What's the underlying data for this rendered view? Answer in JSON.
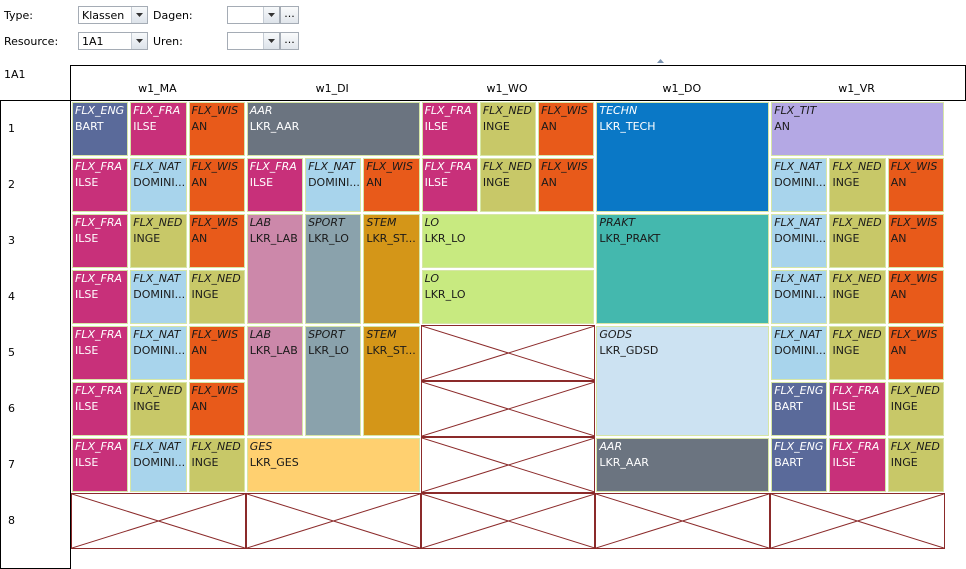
{
  "filters": {
    "type_label": "Type:",
    "type_value": "Klassen",
    "resource_label": "Resource:",
    "resource_value": "1A1",
    "dagen_label": "Dagen:",
    "uren_label": "Uren:",
    "ellipsis": "..."
  },
  "grid_title": "1A1",
  "days": [
    "w1_MA",
    "w1_DI",
    "w1_WO",
    "w1_DO",
    "w1_VR"
  ],
  "hours": [
    "1",
    "2",
    "3",
    "4",
    "5",
    "6",
    "7",
    "8"
  ],
  "colors": {
    "FLX_ENG": "#5a6a9a",
    "FLX_FRA": "#c8307a",
    "FLX_WIS": "#e85a1a",
    "FLX_NAT": "#a8d4ec",
    "FLX_NED": "#c8c868",
    "AAR": "#6b7480",
    "TECHN": "#0a78c6",
    "FLX_TIT": "#b4a8e4",
    "LAB": "#cc88aa",
    "SPORT": "#8aa2ac",
    "STEM": "#d49618",
    "LO": "#c8ea80",
    "PRAKT": "#44b8ae",
    "GODS": "#cce2f2",
    "GES": "#ffd070",
    "empty_border": "#8b2a2a"
  },
  "lessons": [
    {
      "day": 0,
      "sub": 0,
      "span": 1,
      "row": 0,
      "rows": 1,
      "subject": "FLX_ENG",
      "resource": "BART"
    },
    {
      "day": 0,
      "sub": 1,
      "span": 1,
      "row": 0,
      "rows": 1,
      "subject": "FLX_FRA",
      "resource": "ILSE"
    },
    {
      "day": 0,
      "sub": 2,
      "span": 1,
      "row": 0,
      "rows": 1,
      "subject": "FLX_WIS",
      "resource": "AN"
    },
    {
      "day": 1,
      "sub": 0,
      "span": 3,
      "row": 0,
      "rows": 1,
      "subject": "AAR",
      "resource": "LKR_AAR"
    },
    {
      "day": 2,
      "sub": 0,
      "span": 1,
      "row": 0,
      "rows": 1,
      "subject": "FLX_FRA",
      "resource": "ILSE"
    },
    {
      "day": 2,
      "sub": 1,
      "span": 1,
      "row": 0,
      "rows": 1,
      "subject": "FLX_NED",
      "resource": "INGE"
    },
    {
      "day": 2,
      "sub": 2,
      "span": 1,
      "row": 0,
      "rows": 1,
      "subject": "FLX_WIS",
      "resource": "AN"
    },
    {
      "day": 3,
      "sub": 0,
      "span": 3,
      "row": 0,
      "rows": 2,
      "subject": "TECHN",
      "resource": "LKR_TECH"
    },
    {
      "day": 4,
      "sub": 0,
      "span": 3,
      "row": 0,
      "rows": 1,
      "subject": "FLX_TIT",
      "resource": "AN"
    },
    {
      "day": 0,
      "sub": 0,
      "span": 1,
      "row": 1,
      "rows": 1,
      "subject": "FLX_FRA",
      "resource": "ILSE"
    },
    {
      "day": 0,
      "sub": 1,
      "span": 1,
      "row": 1,
      "rows": 1,
      "subject": "FLX_NAT",
      "resource": "DOMINI..."
    },
    {
      "day": 0,
      "sub": 2,
      "span": 1,
      "row": 1,
      "rows": 1,
      "subject": "FLX_WIS",
      "resource": "AN"
    },
    {
      "day": 1,
      "sub": 0,
      "span": 1,
      "row": 1,
      "rows": 1,
      "subject": "FLX_FRA",
      "resource": "ILSE"
    },
    {
      "day": 1,
      "sub": 1,
      "span": 1,
      "row": 1,
      "rows": 1,
      "subject": "FLX_NAT",
      "resource": "DOMINI..."
    },
    {
      "day": 1,
      "sub": 2,
      "span": 1,
      "row": 1,
      "rows": 1,
      "subject": "FLX_WIS",
      "resource": "AN"
    },
    {
      "day": 2,
      "sub": 0,
      "span": 1,
      "row": 1,
      "rows": 1,
      "subject": "FLX_FRA",
      "resource": "ILSE"
    },
    {
      "day": 2,
      "sub": 1,
      "span": 1,
      "row": 1,
      "rows": 1,
      "subject": "FLX_NED",
      "resource": "INGE"
    },
    {
      "day": 2,
      "sub": 2,
      "span": 1,
      "row": 1,
      "rows": 1,
      "subject": "FLX_WIS",
      "resource": "AN"
    },
    {
      "day": 4,
      "sub": 0,
      "span": 1,
      "row": 1,
      "rows": 1,
      "subject": "FLX_NAT",
      "resource": "DOMINI..."
    },
    {
      "day": 4,
      "sub": 1,
      "span": 1,
      "row": 1,
      "rows": 1,
      "subject": "FLX_NED",
      "resource": "INGE"
    },
    {
      "day": 4,
      "sub": 2,
      "span": 1,
      "row": 1,
      "rows": 1,
      "subject": "FLX_WIS",
      "resource": "AN"
    },
    {
      "day": 0,
      "sub": 0,
      "span": 1,
      "row": 2,
      "rows": 1,
      "subject": "FLX_FRA",
      "resource": "ILSE"
    },
    {
      "day": 0,
      "sub": 1,
      "span": 1,
      "row": 2,
      "rows": 1,
      "subject": "FLX_NED",
      "resource": "INGE"
    },
    {
      "day": 0,
      "sub": 2,
      "span": 1,
      "row": 2,
      "rows": 1,
      "subject": "FLX_WIS",
      "resource": "AN"
    },
    {
      "day": 1,
      "sub": 0,
      "span": 1,
      "row": 2,
      "rows": 2,
      "subject": "LAB",
      "resource": "LKR_LAB"
    },
    {
      "day": 1,
      "sub": 1,
      "span": 1,
      "row": 2,
      "rows": 2,
      "subject": "SPORT",
      "resource": "LKR_LO"
    },
    {
      "day": 1,
      "sub": 2,
      "span": 1,
      "row": 2,
      "rows": 2,
      "subject": "STEM",
      "resource": "LKR_ST..."
    },
    {
      "day": 2,
      "sub": 0,
      "span": 3,
      "row": 2,
      "rows": 1,
      "subject": "LO",
      "resource": "LKR_LO"
    },
    {
      "day": 3,
      "sub": 0,
      "span": 3,
      "row": 2,
      "rows": 2,
      "subject": "PRAKT",
      "resource": "LKR_PRAKT"
    },
    {
      "day": 4,
      "sub": 0,
      "span": 1,
      "row": 2,
      "rows": 1,
      "subject": "FLX_NAT",
      "resource": "DOMINI..."
    },
    {
      "day": 4,
      "sub": 1,
      "span": 1,
      "row": 2,
      "rows": 1,
      "subject": "FLX_NED",
      "resource": "INGE"
    },
    {
      "day": 4,
      "sub": 2,
      "span": 1,
      "row": 2,
      "rows": 1,
      "subject": "FLX_WIS",
      "resource": "AN"
    },
    {
      "day": 0,
      "sub": 0,
      "span": 1,
      "row": 3,
      "rows": 1,
      "subject": "FLX_FRA",
      "resource": "ILSE"
    },
    {
      "day": 0,
      "sub": 1,
      "span": 1,
      "row": 3,
      "rows": 1,
      "subject": "FLX_NAT",
      "resource": "DOMINI..."
    },
    {
      "day": 0,
      "sub": 2,
      "span": 1,
      "row": 3,
      "rows": 1,
      "subject": "FLX_NED",
      "resource": "INGE"
    },
    {
      "day": 2,
      "sub": 0,
      "span": 3,
      "row": 3,
      "rows": 1,
      "subject": "LO",
      "resource": "LKR_LO"
    },
    {
      "day": 4,
      "sub": 0,
      "span": 1,
      "row": 3,
      "rows": 1,
      "subject": "FLX_NAT",
      "resource": "DOMINI..."
    },
    {
      "day": 4,
      "sub": 1,
      "span": 1,
      "row": 3,
      "rows": 1,
      "subject": "FLX_NED",
      "resource": "INGE"
    },
    {
      "day": 4,
      "sub": 2,
      "span": 1,
      "row": 3,
      "rows": 1,
      "subject": "FLX_WIS",
      "resource": "AN"
    },
    {
      "day": 0,
      "sub": 0,
      "span": 1,
      "row": 4,
      "rows": 1,
      "subject": "FLX_FRA",
      "resource": "ILSE"
    },
    {
      "day": 0,
      "sub": 1,
      "span": 1,
      "row": 4,
      "rows": 1,
      "subject": "FLX_NAT",
      "resource": "DOMINI..."
    },
    {
      "day": 0,
      "sub": 2,
      "span": 1,
      "row": 4,
      "rows": 1,
      "subject": "FLX_WIS",
      "resource": "AN"
    },
    {
      "day": 1,
      "sub": 0,
      "span": 1,
      "row": 4,
      "rows": 2,
      "subject": "LAB",
      "resource": "LKR_LAB"
    },
    {
      "day": 1,
      "sub": 1,
      "span": 1,
      "row": 4,
      "rows": 2,
      "subject": "SPORT",
      "resource": "LKR_LO"
    },
    {
      "day": 1,
      "sub": 2,
      "span": 1,
      "row": 4,
      "rows": 2,
      "subject": "STEM",
      "resource": "LKR_ST..."
    },
    {
      "day": 3,
      "sub": 0,
      "span": 3,
      "row": 4,
      "rows": 2,
      "subject": "GODS",
      "resource": "LKR_GDSD"
    },
    {
      "day": 4,
      "sub": 0,
      "span": 1,
      "row": 4,
      "rows": 1,
      "subject": "FLX_NAT",
      "resource": "DOMINI..."
    },
    {
      "day": 4,
      "sub": 1,
      "span": 1,
      "row": 4,
      "rows": 1,
      "subject": "FLX_NED",
      "resource": "INGE"
    },
    {
      "day": 4,
      "sub": 2,
      "span": 1,
      "row": 4,
      "rows": 1,
      "subject": "FLX_WIS",
      "resource": "AN"
    },
    {
      "day": 0,
      "sub": 0,
      "span": 1,
      "row": 5,
      "rows": 1,
      "subject": "FLX_FRA",
      "resource": "ILSE"
    },
    {
      "day": 0,
      "sub": 1,
      "span": 1,
      "row": 5,
      "rows": 1,
      "subject": "FLX_NED",
      "resource": "INGE"
    },
    {
      "day": 0,
      "sub": 2,
      "span": 1,
      "row": 5,
      "rows": 1,
      "subject": "FLX_WIS",
      "resource": "AN"
    },
    {
      "day": 4,
      "sub": 0,
      "span": 1,
      "row": 5,
      "rows": 1,
      "subject": "FLX_ENG",
      "resource": "BART"
    },
    {
      "day": 4,
      "sub": 1,
      "span": 1,
      "row": 5,
      "rows": 1,
      "subject": "FLX_FRA",
      "resource": "ILSE"
    },
    {
      "day": 4,
      "sub": 2,
      "span": 1,
      "row": 5,
      "rows": 1,
      "subject": "FLX_NED",
      "resource": "INGE"
    },
    {
      "day": 0,
      "sub": 0,
      "span": 1,
      "row": 6,
      "rows": 1,
      "subject": "FLX_FRA",
      "resource": "ILSE"
    },
    {
      "day": 0,
      "sub": 1,
      "span": 1,
      "row": 6,
      "rows": 1,
      "subject": "FLX_NAT",
      "resource": "DOMINI..."
    },
    {
      "day": 0,
      "sub": 2,
      "span": 1,
      "row": 6,
      "rows": 1,
      "subject": "FLX_NED",
      "resource": "INGE"
    },
    {
      "day": 1,
      "sub": 0,
      "span": 3,
      "row": 6,
      "rows": 1,
      "subject": "GES",
      "resource": "LKR_GES"
    },
    {
      "day": 3,
      "sub": 0,
      "span": 3,
      "row": 6,
      "rows": 1,
      "subject": "AAR",
      "resource": "LKR_AAR"
    },
    {
      "day": 4,
      "sub": 0,
      "span": 1,
      "row": 6,
      "rows": 1,
      "subject": "FLX_ENG",
      "resource": "BART"
    },
    {
      "day": 4,
      "sub": 1,
      "span": 1,
      "row": 6,
      "rows": 1,
      "subject": "FLX_FRA",
      "resource": "ILSE"
    },
    {
      "day": 4,
      "sub": 2,
      "span": 1,
      "row": 6,
      "rows": 1,
      "subject": "FLX_NED",
      "resource": "INGE"
    }
  ],
  "empty_slots": [
    {
      "day": 2,
      "row": 4,
      "rows": 1
    },
    {
      "day": 2,
      "row": 5,
      "rows": 1
    },
    {
      "day": 2,
      "row": 6,
      "rows": 1
    },
    {
      "day": 0,
      "row": 7,
      "rows": 1
    },
    {
      "day": 1,
      "row": 7,
      "rows": 1
    },
    {
      "day": 2,
      "row": 7,
      "rows": 1
    },
    {
      "day": 3,
      "row": 7,
      "rows": 1
    },
    {
      "day": 4,
      "row": 7,
      "rows": 1
    }
  ]
}
